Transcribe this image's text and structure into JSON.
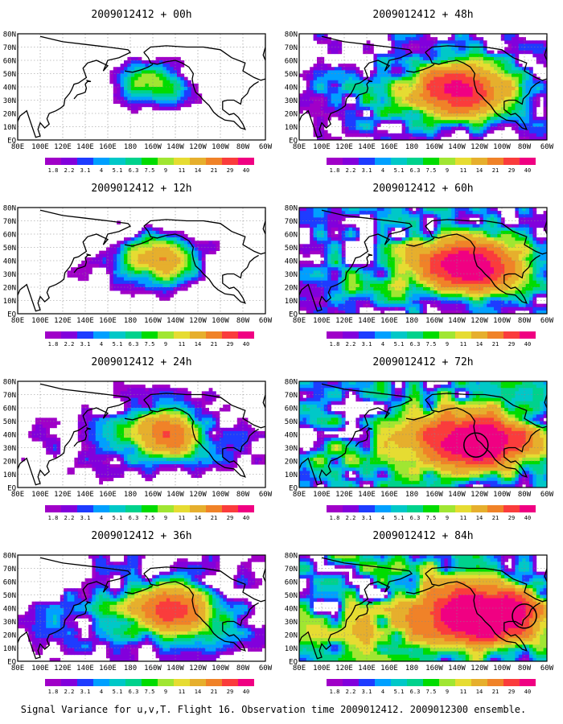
{
  "footer": "Signal Variance for u,v,T. Flight 16. Observation time 2009012412. 2009012300 ensemble.",
  "lat_labels": [
    "80N",
    "70N",
    "60N",
    "50N",
    "40N",
    "30N",
    "20N",
    "10N",
    "EQ"
  ],
  "lon_labels": [
    "80E",
    "100E",
    "120E",
    "140E",
    "160E",
    "180",
    "160W",
    "140W",
    "120W",
    "100W",
    "80W",
    "60W"
  ],
  "scale": {
    "labels": [
      "1.8",
      "2.2",
      "3.1",
      "4",
      "5.1",
      "6.3",
      "7.5",
      "9",
      "11",
      "14",
      "21",
      "29",
      "40"
    ],
    "colors": [
      "#a000c8",
      "#8200dc",
      "#1e3cff",
      "#00a0ff",
      "#00c8c8",
      "#00d28c",
      "#00dc00",
      "#a0e632",
      "#e6dc32",
      "#e6af2d",
      "#f08228",
      "#fa3c3c",
      "#f00082"
    ]
  },
  "panels": [
    {
      "title": "2009012412 + 00h",
      "fh": 0
    },
    {
      "title": "2009012412 + 12h",
      "fh": 12
    },
    {
      "title": "2009012412 + 24h",
      "fh": 24
    },
    {
      "title": "2009012412 + 36h",
      "fh": 36
    },
    {
      "title": "2009012412 + 48h",
      "fh": 48
    },
    {
      "title": "2009012412 + 60h",
      "fh": 60
    },
    {
      "title": "2009012412 + 72h",
      "fh": 72
    },
    {
      "title": "2009012412 + 84h",
      "fh": 84
    }
  ]
}
